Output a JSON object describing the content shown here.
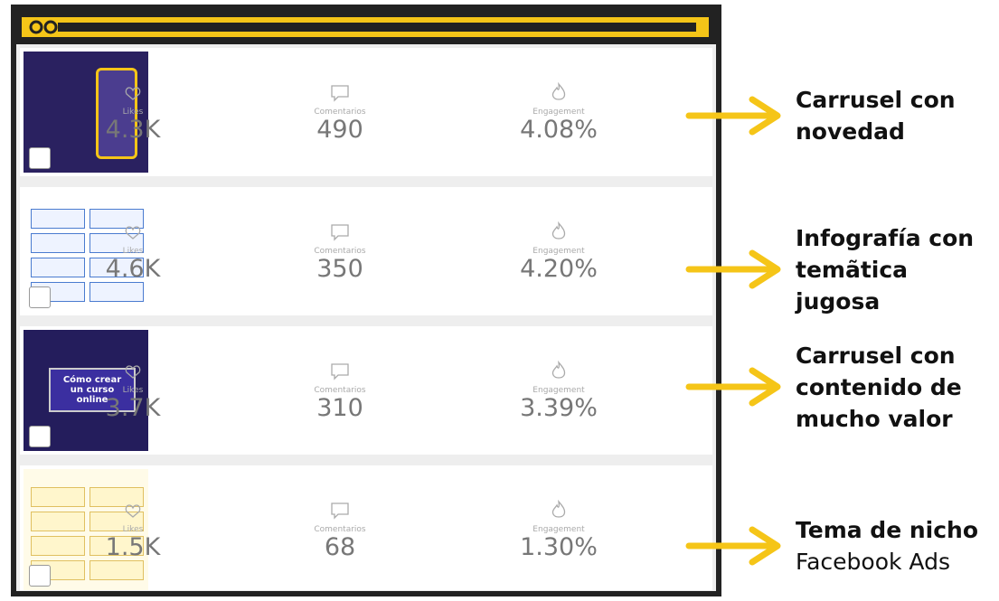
{
  "rows": [
    {
      "metrics": [
        {
          "label": "Likes",
          "value": "4.3K"
        },
        {
          "label": "Comentarios",
          "value": "490"
        },
        {
          "label": "Engagement",
          "value": "4.08%"
        }
      ],
      "annotation": {
        "bold_lines": [
          "Carrusel con",
          "novedad"
        ],
        "light_lines": []
      }
    },
    {
      "metrics": [
        {
          "label": "Likes",
          "value": "4.6K"
        },
        {
          "label": "Comentarios",
          "value": "350"
        },
        {
          "label": "Engagement",
          "value": "4.20%"
        }
      ],
      "annotation": {
        "bold_lines": [
          "Infografía con",
          "temãtica",
          "jugosa"
        ],
        "light_lines": []
      }
    },
    {
      "thumb_text": "Cómo crear un curso online",
      "metrics": [
        {
          "label": "Likes",
          "value": "3.7K"
        },
        {
          "label": "Comentarios",
          "value": "310"
        },
        {
          "label": "Engagement",
          "value": "3.39%"
        }
      ],
      "annotation": {
        "bold_lines": [
          "Carrusel con",
          "contenido de",
          "mucho valor"
        ],
        "light_lines": []
      }
    },
    {
      "metrics": [
        {
          "label": "Likes",
          "value": "1.5K"
        },
        {
          "label": "Comentarios",
          "value": "68"
        },
        {
          "label": "Engagement",
          "value": "1.30%"
        }
      ],
      "annotation": {
        "bold_lines": [
          "Tema de nicho"
        ],
        "light_lines": [
          "Facebook Ads"
        ]
      }
    }
  ]
}
